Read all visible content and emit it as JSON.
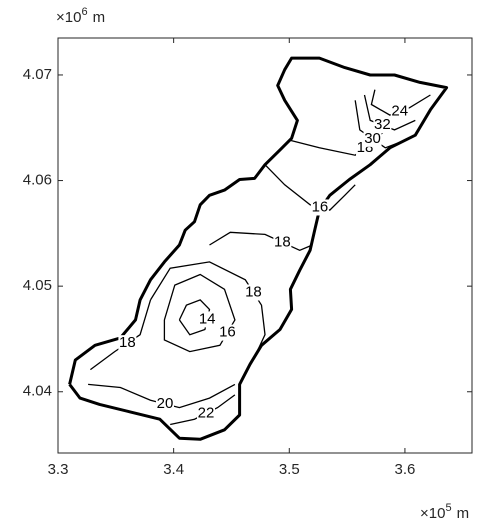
{
  "chart_data": {
    "type": "contour",
    "xlim": [
      3.3,
      3.658
    ],
    "ylim": [
      4.0342,
      4.0735
    ],
    "xticks": [
      3.3,
      3.4,
      3.5,
      3.6
    ],
    "yticks": [
      4.04,
      4.05,
      4.06,
      4.07
    ],
    "x_exponent": {
      "base": "×10",
      "power": "5",
      "unit": "m"
    },
    "y_exponent": {
      "base": "×10",
      "power": "6",
      "unit": "m"
    },
    "color": "#000000",
    "boundary": {
      "x": [
        3.31,
        3.315,
        3.332,
        3.354,
        3.367,
        3.371,
        3.38,
        3.392,
        3.405,
        3.41,
        3.418,
        3.423,
        3.431,
        3.444,
        3.457,
        3.47,
        3.479,
        3.492,
        3.502,
        3.507,
        3.496,
        3.49,
        3.496,
        3.502,
        3.526,
        3.548,
        3.57,
        3.591,
        3.613,
        3.636,
        3.622,
        3.609,
        3.587,
        3.57,
        3.552,
        3.535,
        3.526,
        3.522,
        3.518,
        3.509,
        3.501,
        3.502,
        3.492,
        3.476,
        3.466,
        3.457,
        3.457,
        3.444,
        3.423,
        3.405,
        3.388,
        3.362,
        3.336,
        3.319,
        3.31
      ],
      "y": [
        4.0407,
        4.043,
        4.0444,
        4.0451,
        4.0468,
        4.0487,
        4.0506,
        4.0523,
        4.0539,
        4.0553,
        4.0561,
        4.0577,
        4.0586,
        4.0591,
        4.0601,
        4.0602,
        4.0615,
        4.0629,
        4.064,
        4.0657,
        4.0676,
        4.069,
        4.0705,
        4.0716,
        4.0716,
        4.0707,
        4.07,
        4.07,
        4.0693,
        4.0688,
        4.0667,
        4.0643,
        4.0631,
        4.0615,
        4.0601,
        4.0586,
        4.0572,
        4.0553,
        4.0534,
        4.0515,
        4.0497,
        4.0478,
        4.0459,
        4.0444,
        4.0426,
        4.0407,
        4.0378,
        4.0364,
        4.0355,
        4.0356,
        4.0374,
        4.0381,
        4.0388,
        4.0394,
        4.0407
      ]
    },
    "contours": [
      {
        "level": 14,
        "x": [
          3.405,
          3.411,
          3.423,
          3.431,
          3.427,
          3.414,
          3.405
        ],
        "y": [
          4.0468,
          4.0482,
          4.0487,
          4.0478,
          4.0459,
          4.0454,
          4.0468
        ]
      },
      {
        "level": 16,
        "x": [
          3.392,
          3.401,
          3.423,
          3.444,
          3.453,
          3.44,
          3.414,
          3.392,
          3.392
        ],
        "y": [
          4.0468,
          4.0501,
          4.0511,
          4.0497,
          4.0468,
          4.0444,
          4.0438,
          4.0449,
          4.0468
        ]
      },
      {
        "level": 18,
        "x": [
          3.328,
          3.349,
          3.371,
          3.38
        ],
        "y": [
          4.0421,
          4.0438,
          4.0454,
          4.0487
        ]
      },
      {
        "level": 18,
        "x": [
          3.38,
          3.397,
          3.431,
          3.462,
          3.476,
          3.479,
          3.473
        ],
        "y": [
          4.0487,
          4.0517,
          4.0523,
          4.0506,
          4.0482,
          4.0454,
          4.044
        ]
      },
      {
        "level": 16,
        "x": [
          3.479,
          3.496,
          3.518,
          3.535,
          3.548,
          3.557
        ],
        "y": [
          4.0615,
          4.0596,
          4.0577,
          4.0572,
          4.0586,
          4.0596
        ]
      },
      {
        "level": 18,
        "x": [
          3.431,
          3.449,
          3.479,
          3.509,
          3.52
        ],
        "y": [
          4.0539,
          4.0551,
          4.0549,
          4.0534,
          4.0539
        ]
      },
      {
        "level": 18,
        "x": [
          3.501,
          3.526,
          3.557,
          3.574,
          3.583
        ],
        "y": [
          4.0638,
          4.0631,
          4.0624,
          4.0638,
          4.0648
        ]
      },
      {
        "level": 20,
        "x": [
          3.326,
          3.354,
          3.38,
          3.405,
          3.431,
          3.453
        ],
        "y": [
          4.0407,
          4.0404,
          4.0392,
          4.0385,
          4.0394,
          4.0407
        ]
      },
      {
        "level": 22,
        "x": [
          3.397,
          3.418,
          3.438,
          3.453
        ],
        "y": [
          4.0369,
          4.0374,
          4.0385,
          4.0397
        ]
      },
      {
        "level": 24,
        "x": [
          3.574,
          3.571,
          3.587,
          3.604,
          3.622
        ],
        "y": [
          4.0686,
          4.0672,
          4.0662,
          4.0669,
          4.0681
        ]
      },
      {
        "level": 32,
        "x": [
          3.565,
          3.57,
          3.591,
          3.609
        ],
        "y": [
          4.0681,
          4.0657,
          4.0648,
          4.0657
        ]
      },
      {
        "level": 30,
        "x": [
          3.557,
          3.561,
          3.583,
          3.6
        ],
        "y": [
          4.0676,
          4.0648,
          4.0631,
          4.0638
        ]
      }
    ]
  }
}
